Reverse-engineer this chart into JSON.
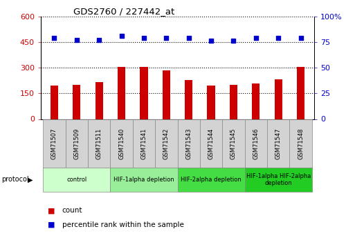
{
  "title": "GDS2760 / 227442_at",
  "samples": [
    "GSM71507",
    "GSM71509",
    "GSM71511",
    "GSM71540",
    "GSM71541",
    "GSM71542",
    "GSM71543",
    "GSM71544",
    "GSM71545",
    "GSM71546",
    "GSM71547",
    "GSM71548"
  ],
  "counts": [
    198,
    202,
    215,
    305,
    305,
    285,
    228,
    198,
    202,
    208,
    232,
    305
  ],
  "percentile_ranks": [
    79.5,
    77.5,
    77.5,
    81.5,
    79.5,
    79.5,
    79.5,
    76.5,
    76.5,
    79.5,
    79.5,
    79.5
  ],
  "ylim_left": [
    0,
    600
  ],
  "ylim_right": [
    0,
    100
  ],
  "yticks_left": [
    0,
    150,
    300,
    450,
    600
  ],
  "yticks_right": [
    0,
    25,
    50,
    75,
    100
  ],
  "bar_color": "#cc0000",
  "dot_color": "#0000cc",
  "protocol_groups": [
    {
      "label": "control",
      "start": 0,
      "end": 3,
      "color": "#ccffcc"
    },
    {
      "label": "HIF-1alpha depletion",
      "start": 3,
      "end": 6,
      "color": "#99ee99"
    },
    {
      "label": "HIF-2alpha depletion",
      "start": 6,
      "end": 9,
      "color": "#44dd44"
    },
    {
      "label": "HIF-1alpha HIF-2alpha\ndepletion",
      "start": 9,
      "end": 12,
      "color": "#22cc22"
    }
  ],
  "legend_count_label": "count",
  "legend_pct_label": "percentile rank within the sample",
  "protocol_label": "protocol",
  "sample_cell_color": "#d3d3d3",
  "bar_width": 0.35
}
